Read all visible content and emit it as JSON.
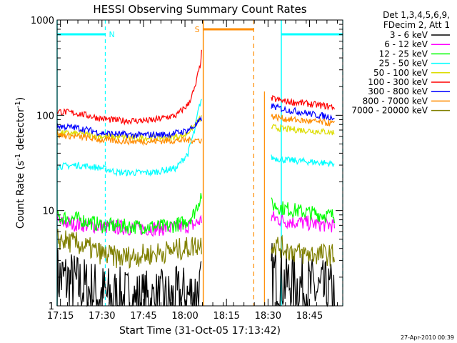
{
  "chart_data": {
    "type": "line",
    "title": "HESSI Observing Summary Count Rates",
    "xlabel": "Start Time (31-Oct-05 17:13:42)",
    "ylabel_main": "Count Rate (s",
    "ylabel_sup1": "-1",
    "ylabel_mid": " detector",
    "ylabel_sup2": "-1",
    "ylabel_end": ")",
    "ylog": true,
    "ylim": [
      1,
      1000
    ],
    "xlim_minutes": [
      17.23,
      18.95
    ],
    "x_ticks": [
      "17:15",
      "17:30",
      "17:45",
      "18:00",
      "18:15",
      "18:30",
      "18:45"
    ],
    "x_tick_values": [
      17.25,
      17.5,
      17.75,
      18.0,
      18.25,
      18.5,
      18.75
    ],
    "y_ticks": [
      "1",
      "10",
      "100",
      "1000"
    ],
    "y_tick_values": [
      1,
      10,
      100,
      1000
    ],
    "legend_header": [
      "Det 1,3,4,5,6,9,",
      "FDecim 2, Att 1"
    ],
    "legend_placement": "right",
    "footer_timestamp": "27-Apr-2010 00:39",
    "flags": {
      "N_label": "N",
      "S_label": "S",
      "night_intervals": [
        [
          17.23,
          17.52
        ],
        [
          18.58,
          18.95
        ]
      ],
      "saa_interval": [
        18.11,
        18.5
      ]
    },
    "series": [
      {
        "name": "3 - 6 keV",
        "color": "#000000",
        "segments": [
          {
            "x": [
              17.23,
              17.3,
              17.4,
              17.5,
              17.55,
              17.7,
              17.9,
              18.05,
              18.1
            ],
            "y": [
              2.0,
              1.8,
              1.5,
              1.3,
              1.2,
              1.1,
              1.1,
              1.3,
              1.5
            ]
          },
          {
            "x": [
              18.52,
              18.6,
              18.7,
              18.8,
              18.9
            ],
            "y": [
              2.2,
              1.8,
              1.6,
              1.4,
              1.3
            ]
          }
        ]
      },
      {
        "name": "6 - 12 keV",
        "color": "#ff00ff",
        "segments": [
          {
            "x": [
              17.23,
              17.35,
              17.5,
              17.7,
              17.9,
              18.05,
              18.1
            ],
            "y": [
              7.5,
              7.2,
              6.8,
              6.5,
              6.5,
              7.0,
              8.0
            ]
          },
          {
            "x": [
              18.52,
              18.6,
              18.7,
              18.8,
              18.9
            ],
            "y": [
              8.5,
              7.8,
              7.5,
              7.2,
              7.0
            ]
          }
        ]
      },
      {
        "name": "12 - 25 keV",
        "color": "#00ff00",
        "segments": [
          {
            "x": [
              17.23,
              17.35,
              17.5,
              17.7,
              17.9,
              18.0,
              18.05,
              18.08,
              18.1
            ],
            "y": [
              8.5,
              8.2,
              7.0,
              6.8,
              6.8,
              7.5,
              9.0,
              12.0,
              15.0
            ]
          },
          {
            "x": [
              18.52,
              18.6,
              18.7,
              18.8,
              18.9
            ],
            "y": [
              11.5,
              10.5,
              9.8,
              9.2,
              8.8
            ]
          }
        ]
      },
      {
        "name": "25 - 50 keV",
        "color": "#00ffff",
        "segments": [
          {
            "x": [
              17.23,
              17.35,
              17.5,
              17.6,
              17.8,
              17.95,
              18.02,
              18.06,
              18.1
            ],
            "y": [
              29,
              30,
              28,
              25,
              25,
              28,
              40,
              70,
              150
            ]
          },
          {
            "x": [
              18.52,
              18.6,
              18.7,
              18.8,
              18.9
            ],
            "y": [
              36,
              34,
              33,
              32,
              31
            ]
          }
        ]
      },
      {
        "name": "50 - 100 keV",
        "color": "#dddd00",
        "segments": [
          {
            "x": [
              17.23,
              17.35,
              17.5,
              17.7,
              17.9,
              18.0,
              18.05,
              18.1
            ],
            "y": [
              65,
              64,
              60,
              58,
              58,
              62,
              75,
              95
            ]
          },
          {
            "x": [
              18.52,
              18.6,
              18.7,
              18.8,
              18.9
            ],
            "y": [
              75,
              72,
              70,
              68,
              66
            ]
          }
        ]
      },
      {
        "name": "100 - 300 keV",
        "color": "#ff0000",
        "segments": [
          {
            "x": [
              17.23,
              17.35,
              17.5,
              17.6,
              17.8,
              17.95,
              18.02,
              18.06,
              18.09,
              18.1
            ],
            "y": [
              110,
              105,
              92,
              88,
              88,
              100,
              130,
              190,
              320,
              450
            ]
          },
          {
            "x": [
              18.52,
              18.6,
              18.7,
              18.8,
              18.9
            ],
            "y": [
              150,
              140,
              135,
              128,
              122
            ]
          }
        ]
      },
      {
        "name": "300 - 800 keV",
        "color": "#0000ff",
        "segments": [
          {
            "x": [
              17.23,
              17.35,
              17.5,
              17.7,
              17.9,
              18.0,
              18.05,
              18.1
            ],
            "y": [
              77,
              74,
              65,
              62,
              63,
              68,
              75,
              90
            ]
          },
          {
            "x": [
              18.52,
              18.6,
              18.7,
              18.8,
              18.9
            ],
            "y": [
              125,
              115,
              108,
              100,
              95
            ]
          }
        ]
      },
      {
        "name": "800 - 7000 keV",
        "color": "#ff8c00",
        "segments": [
          {
            "x": [
              17.23,
              17.35,
              17.5,
              17.7,
              17.9,
              18.05,
              18.1
            ],
            "y": [
              62,
              60,
              55,
              53,
              54,
              55,
              55
            ]
          },
          {
            "x": [
              18.52,
              18.6,
              18.7,
              18.8,
              18.9
            ],
            "y": [
              98,
              92,
              88,
              85,
              82
            ]
          }
        ]
      },
      {
        "name": "7000 - 20000 keV",
        "color": "#808000",
        "segments": [
          {
            "x": [
              17.23,
              17.35,
              17.5,
              17.6,
              17.8,
              18.0,
              18.1
            ],
            "y": [
              5.0,
              4.5,
              3.5,
              3.2,
              3.5,
              4.0,
              4.5
            ]
          },
          {
            "x": [
              18.52,
              18.6,
              18.7,
              18.8,
              18.9
            ],
            "y": [
              4.5,
              4.0,
              3.5,
              3.5,
              3.4
            ]
          }
        ]
      }
    ]
  }
}
